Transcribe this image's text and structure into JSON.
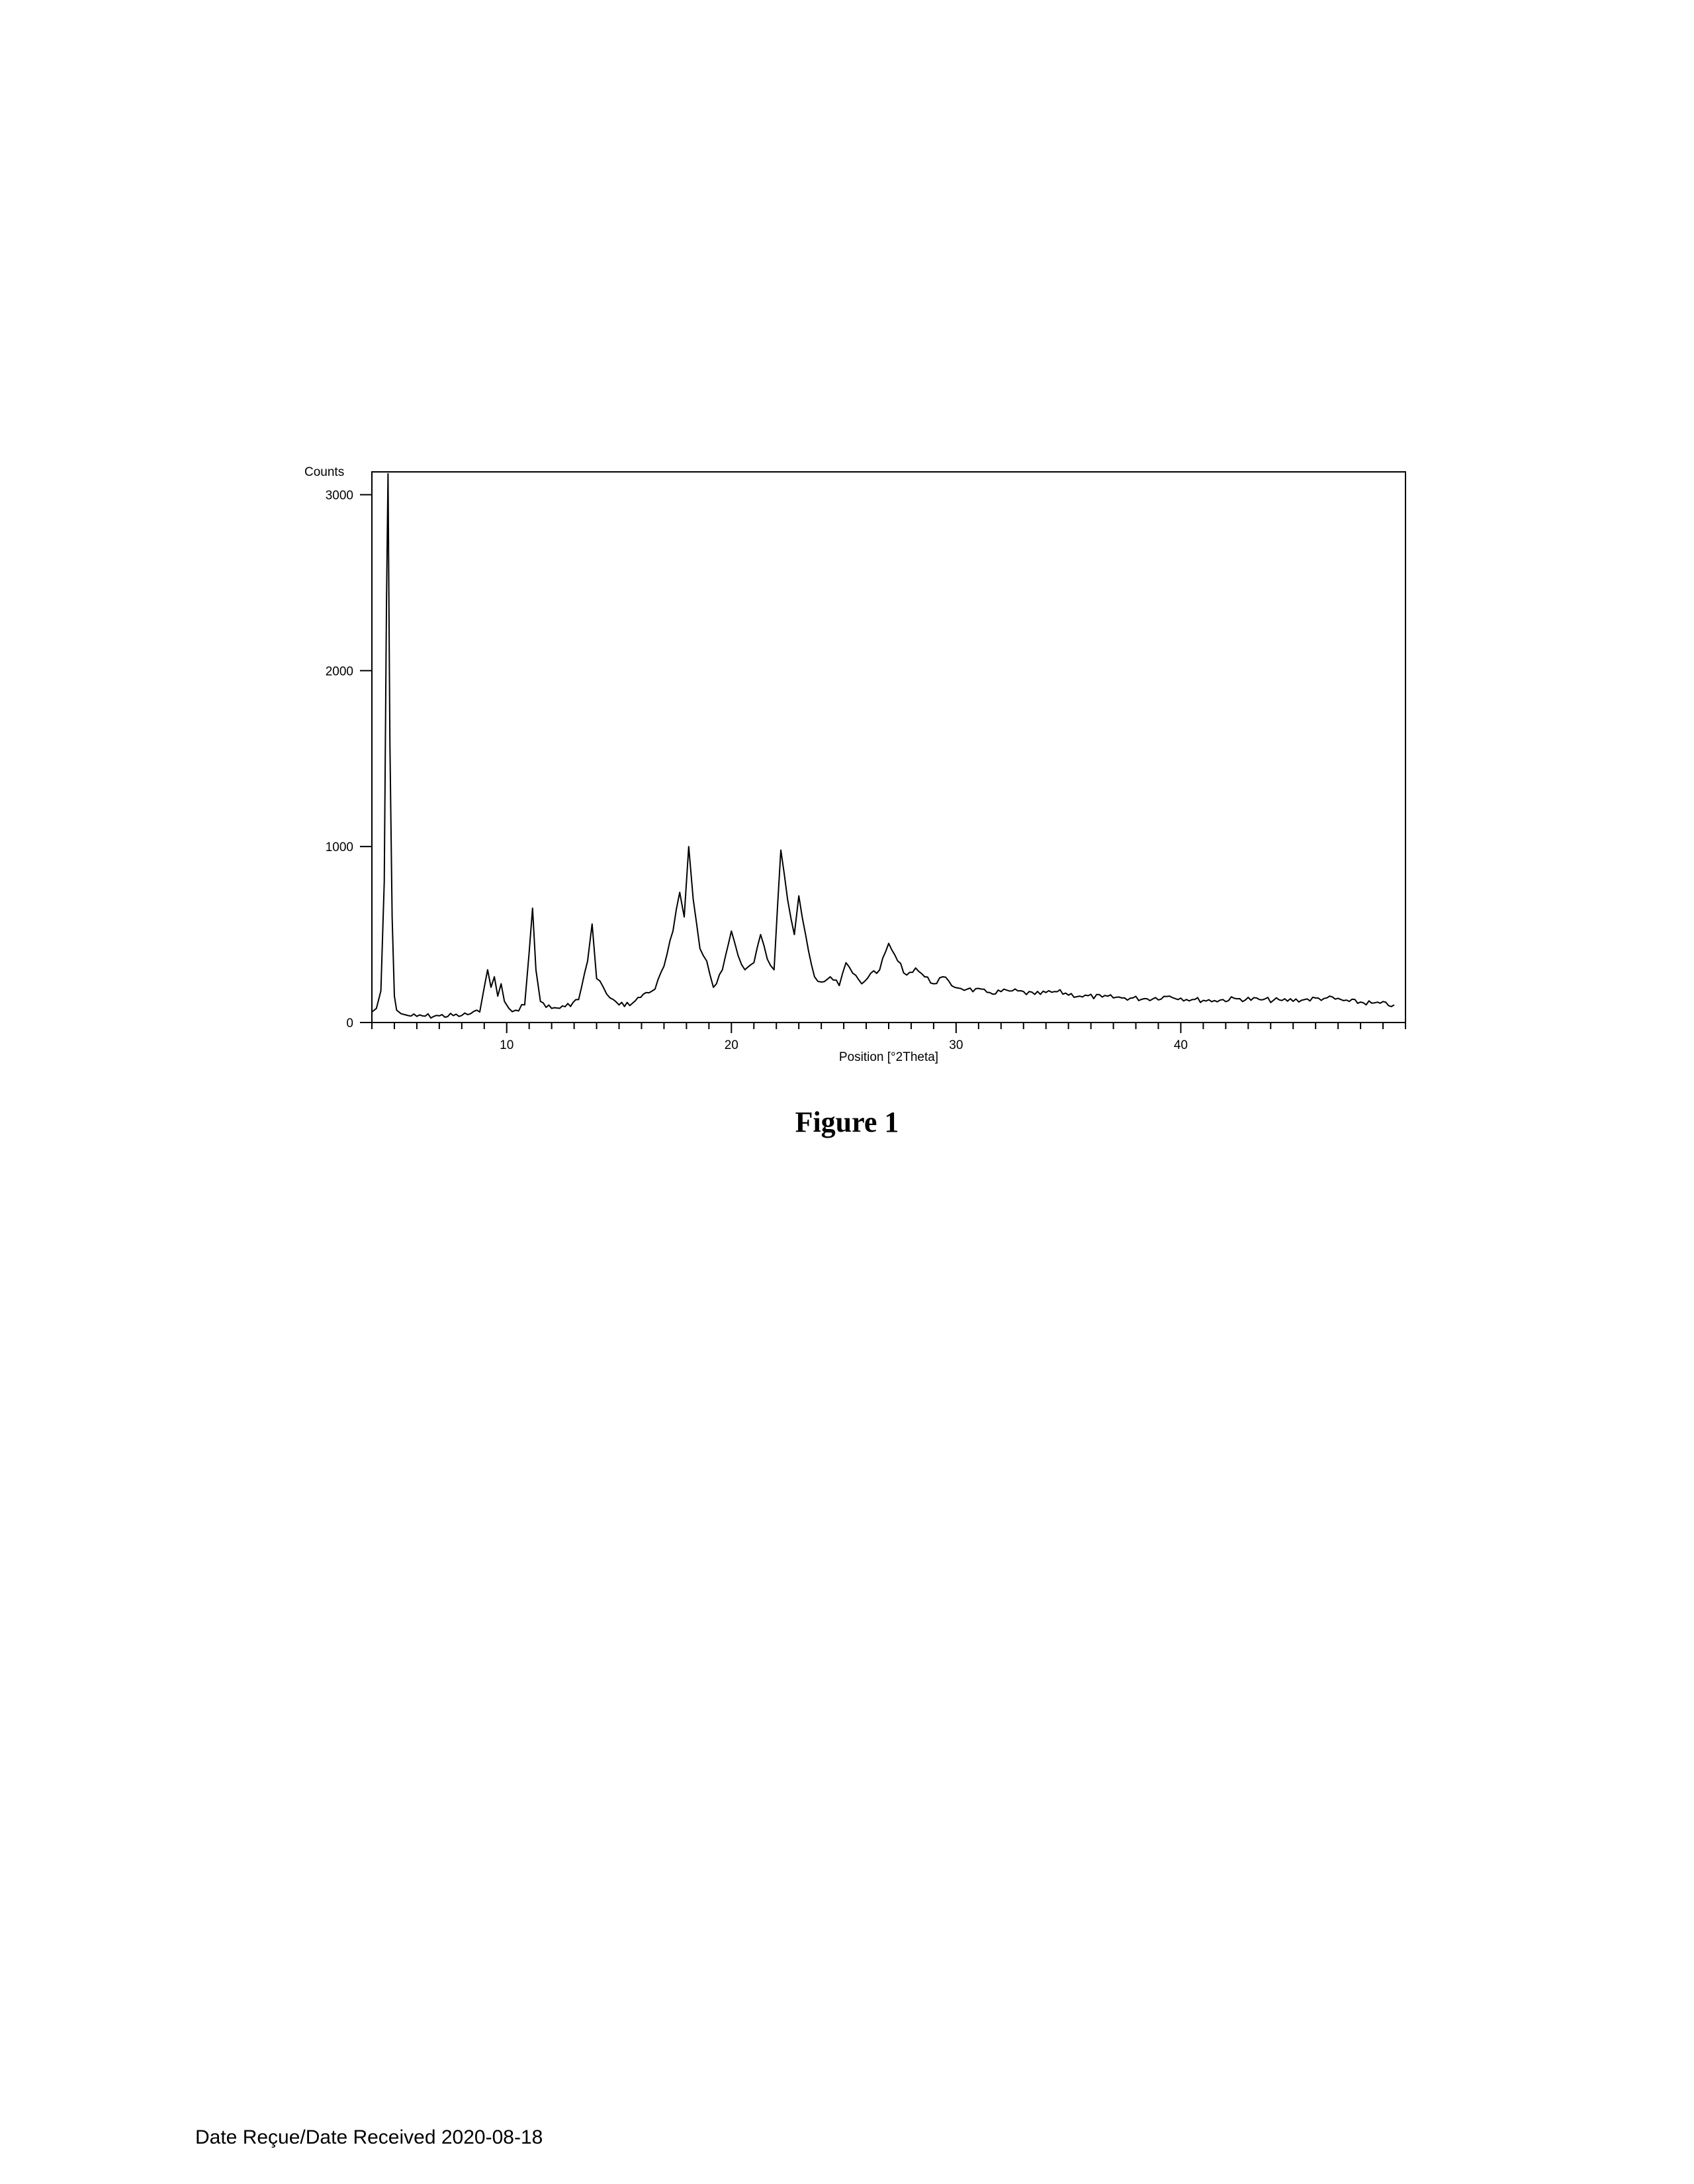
{
  "figure": {
    "caption": "Figure 1"
  },
  "footer": {
    "received": "Date Reçue/Date Received  2020-08-18"
  },
  "chart_data": {
    "type": "line",
    "title": "",
    "xlabel": "Position [°2Theta]",
    "ylabel": "Counts",
    "xlim": [
      4,
      50
    ],
    "ylim": [
      0,
      3130
    ],
    "xticks": [
      10,
      20,
      30,
      40
    ],
    "yticks": [
      0,
      1000,
      2000,
      3000
    ],
    "series": [
      {
        "x": [
          4.0,
          4.2,
          4.4,
          4.55,
          4.65,
          4.72,
          4.8,
          4.9,
          5.0,
          5.1,
          5.3,
          5.6,
          6.0,
          7.0,
          8.0,
          8.8,
          9.0,
          9.15,
          9.3,
          9.45,
          9.6,
          9.75,
          9.9,
          10.1,
          10.4,
          10.8,
          11.0,
          11.15,
          11.3,
          11.5,
          12.0,
          12.6,
          13.2,
          13.6,
          13.8,
          14.0,
          14.3,
          14.6,
          15.0,
          15.6,
          16.2,
          16.6,
          17.0,
          17.4,
          17.7,
          17.9,
          18.1,
          18.3,
          18.6,
          18.9,
          19.2,
          19.6,
          20.0,
          20.3,
          20.6,
          21.0,
          21.3,
          21.6,
          21.9,
          22.2,
          22.5,
          22.8,
          23.0,
          23.3,
          23.7,
          24.0,
          24.4,
          24.8,
          25.1,
          25.4,
          25.8,
          26.2,
          26.6,
          27.0,
          27.4,
          27.8,
          28.2,
          28.6,
          29.0,
          29.4,
          29.8,
          30.5,
          31.5,
          32.5,
          33.5,
          34.5,
          35.5,
          36.5,
          37.5,
          38.5,
          39.5,
          40.5,
          41.5,
          42.5,
          43.5,
          44.5,
          45.5,
          46.5,
          47.5,
          48.5,
          49.5
        ],
        "y": [
          60,
          80,
          180,
          800,
          2400,
          3120,
          1600,
          600,
          150,
          70,
          50,
          40,
          35,
          38,
          40,
          60,
          200,
          300,
          200,
          260,
          150,
          220,
          120,
          80,
          70,
          100,
          400,
          650,
          300,
          120,
          80,
          90,
          130,
          350,
          560,
          250,
          200,
          140,
          100,
          110,
          170,
          190,
          320,
          520,
          740,
          600,
          1000,
          700,
          420,
          350,
          200,
          300,
          520,
          380,
          300,
          340,
          500,
          360,
          300,
          980,
          700,
          500,
          720,
          500,
          260,
          230,
          260,
          210,
          340,
          280,
          220,
          280,
          300,
          450,
          350,
          270,
          310,
          260,
          220,
          260,
          210,
          190,
          170,
          180,
          160,
          175,
          150,
          145,
          140,
          135,
          150,
          130,
          125,
          135,
          130,
          125,
          130,
          140,
          120,
          110,
          100
        ]
      }
    ]
  }
}
